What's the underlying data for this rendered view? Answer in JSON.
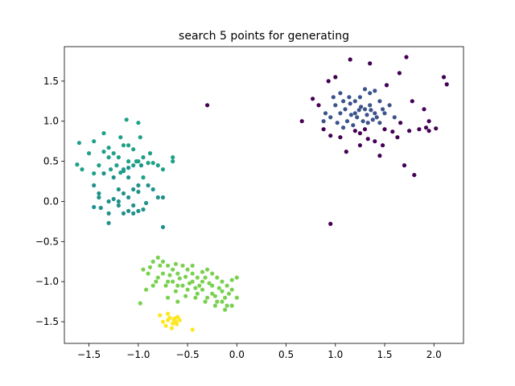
{
  "chart_data": {
    "type": "scatter",
    "title": "search 5 points for generating",
    "xlabel": "",
    "ylabel": "",
    "xlim": [
      -1.75,
      2.3
    ],
    "ylim": [
      -1.77,
      1.93
    ],
    "grid": false,
    "legend": "none",
    "xticks": [
      -1.5,
      -1.0,
      -0.5,
      0.0,
      0.5,
      1.0,
      1.5,
      2.0
    ],
    "xtick_labels": [
      "−1.5",
      "−1.0",
      "−0.5",
      "0.0",
      "0.5",
      "1.0",
      "1.5",
      "2.0"
    ],
    "yticks": [
      -1.5,
      -1.0,
      -0.5,
      0.0,
      0.5,
      1.0,
      1.5
    ],
    "ytick_labels": [
      "−1.5",
      "−1.0",
      "−0.5",
      "0.0",
      "0.5",
      "1.0",
      "1.5"
    ],
    "series": [
      {
        "color": "#440154",
        "points": [
          [
            1.0,
            1.55
          ],
          [
            1.15,
            1.77
          ],
          [
            1.35,
            1.72
          ],
          [
            1.72,
            1.8
          ],
          [
            1.65,
            1.6
          ],
          [
            2.1,
            1.55
          ],
          [
            2.13,
            1.46
          ],
          [
            0.77,
            1.28
          ],
          [
            0.93,
            1.5
          ],
          [
            1.52,
            1.45
          ],
          [
            1.78,
            1.25
          ],
          [
            1.9,
            1.15
          ],
          [
            0.66,
            1.0
          ],
          [
            0.88,
            0.9
          ],
          [
            1.11,
            0.62
          ],
          [
            1.45,
            0.57
          ],
          [
            1.63,
            0.8
          ],
          [
            1.7,
            0.45
          ],
          [
            1.8,
            0.33
          ],
          [
            1.85,
            0.9
          ],
          [
            1.95,
            0.88
          ],
          [
            2.02,
            0.91
          ],
          [
            1.58,
            0.87
          ],
          [
            1.48,
            0.7
          ],
          [
            1.4,
            0.75
          ],
          [
            1.3,
            0.9
          ],
          [
            1.25,
            0.85
          ],
          [
            0.95,
            0.82
          ],
          [
            1.05,
            0.8
          ],
          [
            1.95,
            1.0
          ],
          [
            1.66,
            0.98
          ],
          [
            1.75,
            0.88
          ],
          [
            1.92,
            0.92
          ],
          [
            -0.3,
            1.2
          ],
          [
            0.95,
            -0.28
          ],
          [
            1.33,
            0.78
          ],
          [
            1.5,
            0.9
          ],
          [
            0.83,
            1.2
          ],
          [
            1.25,
            0.7
          ],
          [
            1.2,
            0.88
          ]
        ]
      },
      {
        "color": "#3b528b",
        "points": [
          [
            1.0,
            1.2
          ],
          [
            1.05,
            1.1
          ],
          [
            1.1,
            1.15
          ],
          [
            1.15,
            1.22
          ],
          [
            1.2,
            1.1
          ],
          [
            1.25,
            1.3
          ],
          [
            1.3,
            1.15
          ],
          [
            1.35,
            1.2
          ],
          [
            1.4,
            1.1
          ],
          [
            1.45,
            1.25
          ],
          [
            1.12,
            1.0
          ],
          [
            1.18,
            0.95
          ],
          [
            1.22,
            1.05
          ],
          [
            1.28,
            1.0
          ],
          [
            1.33,
            0.98
          ],
          [
            0.95,
            1.05
          ],
          [
            0.9,
            1.1
          ],
          [
            0.98,
            1.3
          ],
          [
            1.05,
            1.35
          ],
          [
            1.3,
            1.4
          ],
          [
            1.35,
            1.35
          ],
          [
            1.4,
            1.38
          ],
          [
            1.5,
            1.1
          ],
          [
            1.55,
            1.2
          ],
          [
            1.6,
            1.05
          ],
          [
            1.45,
            0.98
          ],
          [
            1.42,
            1.05
          ],
          [
            1.08,
            1.25
          ],
          [
            1.14,
            1.3
          ],
          [
            1.2,
            1.25
          ],
          [
            1.26,
            1.18
          ],
          [
            1.32,
            1.08
          ],
          [
            1.38,
            1.02
          ],
          [
            1.02,
            0.98
          ],
          [
            1.08,
            0.92
          ],
          [
            1.16,
            1.08
          ],
          [
            1.24,
            1.14
          ],
          [
            1.36,
            1.14
          ],
          [
            0.88,
            1.0
          ],
          [
            1.48,
            1.15
          ]
        ]
      },
      {
        "color": "#21918c",
        "points": [
          [
            -1.45,
            0.2
          ],
          [
            -1.4,
            0.1
          ],
          [
            -1.45,
            -0.07
          ],
          [
            -1.38,
            -0.08
          ],
          [
            -1.3,
            -0.15
          ],
          [
            -1.3,
            -0.27
          ],
          [
            -1.25,
            0.03
          ],
          [
            -1.2,
            0.0
          ],
          [
            -1.15,
            0.1
          ],
          [
            -1.1,
            0.05
          ],
          [
            -1.05,
            0.15
          ],
          [
            -1.0,
            0.12
          ],
          [
            -1.05,
            -0.05
          ],
          [
            -1.0,
            -0.12
          ],
          [
            -0.95,
            -0.1
          ],
          [
            -0.9,
            0.2
          ],
          [
            -0.85,
            0.15
          ],
          [
            -0.8,
            0.05
          ],
          [
            -0.75,
            0.05
          ],
          [
            -0.75,
            -0.32
          ],
          [
            -1.2,
            -0.05
          ],
          [
            -1.15,
            -0.15
          ],
          [
            -1.1,
            -0.12
          ],
          [
            -1.2,
            0.15
          ],
          [
            -1.3,
            0.0
          ],
          [
            -1.35,
            0.35
          ],
          [
            -1.25,
            0.3
          ],
          [
            -1.15,
            0.38
          ],
          [
            -1.1,
            0.3
          ],
          [
            -1.05,
            -0.15
          ],
          [
            -0.97,
            0.45
          ],
          [
            -1.1,
            0.42
          ],
          [
            -1.0,
            0.2
          ],
          [
            -0.92,
            -0.02
          ],
          [
            -1.4,
            0.05
          ]
        ]
      },
      {
        "color": "#1fa187",
        "points": [
          [
            -1.6,
            0.73
          ],
          [
            -1.62,
            0.46
          ],
          [
            -1.57,
            0.4
          ],
          [
            -1.45,
            0.35
          ],
          [
            -1.4,
            0.45
          ],
          [
            -1.35,
            0.62
          ],
          [
            -1.3,
            0.67
          ],
          [
            -1.25,
            0.6
          ],
          [
            -1.2,
            0.55
          ],
          [
            -1.15,
            0.4
          ],
          [
            -1.1,
            0.5
          ],
          [
            -1.05,
            0.45
          ],
          [
            -1.0,
            0.5
          ],
          [
            -0.95,
            0.55
          ],
          [
            -0.9,
            0.48
          ],
          [
            -0.85,
            0.48
          ],
          [
            -0.8,
            0.45
          ],
          [
            -0.75,
            0.4
          ],
          [
            -0.65,
            0.55
          ],
          [
            -0.65,
            0.5
          ],
          [
            -1.1,
            0.7
          ],
          [
            -1.05,
            0.65
          ],
          [
            -1.15,
            0.7
          ],
          [
            -1.35,
            0.85
          ],
          [
            -1.18,
            0.8
          ],
          [
            -1.12,
            1.02
          ],
          [
            -1.0,
            0.98
          ],
          [
            -0.98,
            0.8
          ],
          [
            -1.5,
            0.6
          ],
          [
            -1.45,
            0.75
          ],
          [
            -1.28,
            0.4
          ],
          [
            -1.22,
            0.45
          ],
          [
            -1.18,
            0.36
          ],
          [
            -0.88,
            0.6
          ],
          [
            -0.95,
            0.3
          ],
          [
            -1.02,
            0.5
          ],
          [
            -1.3,
            0.55
          ]
        ]
      },
      {
        "color": "#7ad151",
        "points": [
          [
            -0.8,
            -0.7
          ],
          [
            -0.75,
            -0.75
          ],
          [
            -0.7,
            -0.8
          ],
          [
            -0.65,
            -0.85
          ],
          [
            -0.6,
            -0.9
          ],
          [
            -0.55,
            -0.8
          ],
          [
            -0.5,
            -0.85
          ],
          [
            -0.45,
            -0.9
          ],
          [
            -0.4,
            -0.95
          ],
          [
            -0.35,
            -1.0
          ],
          [
            -0.3,
            -0.85
          ],
          [
            -0.25,
            -0.9
          ],
          [
            -0.2,
            -0.95
          ],
          [
            -0.15,
            -1.0
          ],
          [
            -0.1,
            -1.05
          ],
          [
            -0.05,
            -1.1
          ],
          [
            0.0,
            -0.95
          ],
          [
            0.0,
            -1.2
          ],
          [
            -0.1,
            -1.3
          ],
          [
            -0.2,
            -1.25
          ],
          [
            -0.3,
            -1.2
          ],
          [
            -0.4,
            -1.15
          ],
          [
            -0.5,
            -1.1
          ],
          [
            -0.6,
            -1.05
          ],
          [
            -0.7,
            -1.0
          ],
          [
            -0.8,
            -0.95
          ],
          [
            -0.9,
            -0.9
          ],
          [
            -0.95,
            -0.85
          ],
          [
            -0.85,
            -0.75
          ],
          [
            -0.75,
            -0.9
          ],
          [
            -0.65,
            -1.0
          ],
          [
            -0.55,
            -1.05
          ],
          [
            -0.45,
            -1.0
          ],
          [
            -0.35,
            -1.1
          ],
          [
            -0.25,
            -1.15
          ],
          [
            -0.15,
            -1.25
          ],
          [
            -0.05,
            -1.3
          ],
          [
            -0.12,
            -1.35
          ],
          [
            -0.22,
            -1.3
          ],
          [
            -0.32,
            -1.25
          ],
          [
            -0.42,
            -1.2
          ],
          [
            -0.52,
            -1.18
          ],
          [
            -0.62,
            -1.12
          ],
          [
            -0.72,
            -1.05
          ],
          [
            -0.82,
            -1.0
          ],
          [
            -0.92,
            -1.1
          ],
          [
            -0.78,
            -0.8
          ],
          [
            -0.68,
            -0.92
          ],
          [
            -0.58,
            -0.96
          ],
          [
            -0.48,
            -1.02
          ],
          [
            -0.38,
            -1.05
          ],
          [
            -0.28,
            -1.02
          ],
          [
            -0.18,
            -1.08
          ],
          [
            -0.08,
            -1.15
          ],
          [
            -0.62,
            -0.78
          ],
          [
            -0.52,
            -0.94
          ],
          [
            -0.42,
            -1.08
          ],
          [
            -0.32,
            -0.95
          ],
          [
            -0.22,
            -1.18
          ],
          [
            -0.12,
            -1.2
          ],
          [
            -0.7,
            -1.2
          ],
          [
            -0.6,
            -1.25
          ],
          [
            -0.98,
            -1.27
          ],
          [
            -0.85,
            -1.05
          ],
          [
            -0.45,
            -0.8
          ],
          [
            -0.35,
            -0.88
          ],
          [
            -0.25,
            -1.05
          ],
          [
            -0.15,
            -1.12
          ],
          [
            -0.05,
            -0.98
          ],
          [
            -0.88,
            -0.82
          ]
        ]
      },
      {
        "color": "#fde725",
        "points": [
          [
            -0.78,
            -1.42
          ],
          [
            -0.75,
            -1.5
          ],
          [
            -0.72,
            -1.55
          ],
          [
            -0.7,
            -1.48
          ],
          [
            -0.68,
            -1.45
          ],
          [
            -0.65,
            -1.52
          ],
          [
            -0.63,
            -1.46
          ],
          [
            -0.62,
            -1.5
          ],
          [
            -0.6,
            -1.44
          ],
          [
            -0.58,
            -1.48
          ],
          [
            -0.66,
            -1.58
          ],
          [
            -0.7,
            -1.4
          ],
          [
            -0.45,
            -1.6
          ],
          [
            -0.64,
            -1.47
          ],
          [
            -0.61,
            -1.53
          ]
        ]
      }
    ]
  }
}
